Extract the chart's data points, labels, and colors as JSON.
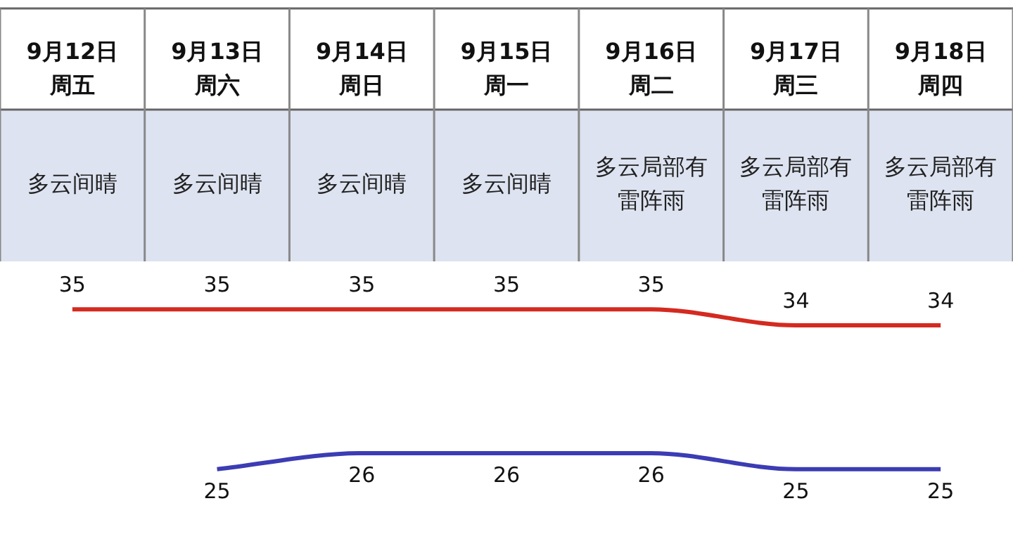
{
  "chart_data": {
    "type": "line",
    "categories": [
      "9月12日周五",
      "9月13日周六",
      "9月14日周日",
      "9月15日周一",
      "9月16日周二",
      "9月17日周三",
      "9月18日周四"
    ],
    "series": [
      {
        "color": "#d42a20",
        "values": [
          35,
          35,
          35,
          35,
          35,
          34,
          34
        ]
      },
      {
        "color": "#3c3cb4",
        "values": [
          null,
          25,
          26,
          26,
          26,
          25,
          25
        ]
      }
    ],
    "annotations": [
      "多云间晴",
      "多云间晴",
      "多云间晴",
      "多云间晴",
      "多云局部有雷阵雨",
      "多云局部有雷阵雨",
      "多云局部有雷阵雨"
    ],
    "data_labels": true,
    "grid": "x",
    "legend": false,
    "marker": "none",
    "line_style": "solid"
  }
}
